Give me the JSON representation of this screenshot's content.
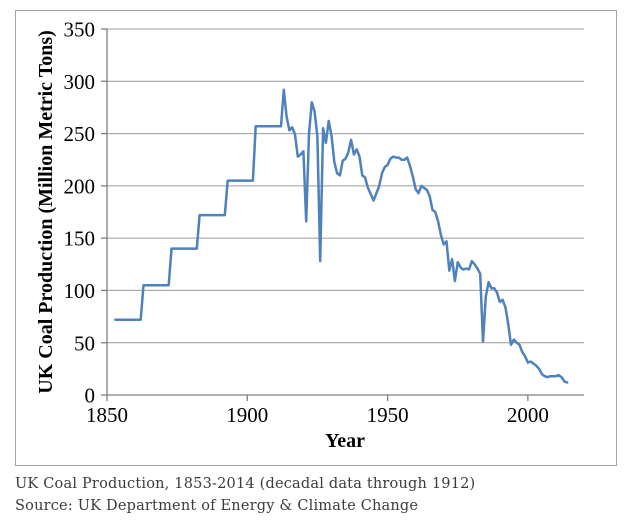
{
  "chart": {
    "y_axis_title": "UK Coal Production (Million Metric Tons)",
    "x_axis_title": "Year",
    "y_ticks": [
      0,
      50,
      100,
      150,
      200,
      250,
      300,
      350
    ],
    "x_ticks": [
      1850,
      1900,
      1950,
      2000
    ],
    "colors": {
      "line": "#4f81bd",
      "gridline": "#9c9c9c",
      "axis": "#7f7f7f",
      "frame_border": "#a3a3a3",
      "tick_text": "#000000",
      "caption_text": "#3c3c3c"
    }
  },
  "caption": {
    "line1": "UK Coal Production, 1853-2014 (decadal data through 1912)",
    "line2": "Source: UK Department of Energy & Climate Change"
  },
  "chart_data": {
    "type": "line",
    "title": "",
    "xlabel": "Year",
    "ylabel": "UK Coal Production (Million Metric Tons)",
    "xlim": [
      1850,
      2020
    ],
    "ylim": [
      0,
      350
    ],
    "grid": true,
    "legend": false,
    "series_name": "UK coal production (million metric tons)",
    "decadal_steps": [
      {
        "start": 1853,
        "end": 1862,
        "value": 72
      },
      {
        "start": 1863,
        "end": 1872,
        "value": 105
      },
      {
        "start": 1873,
        "end": 1882,
        "value": 140
      },
      {
        "start": 1883,
        "end": 1892,
        "value": 172
      },
      {
        "start": 1893,
        "end": 1902,
        "value": 205
      },
      {
        "start": 1903,
        "end": 1912,
        "value": 257
      }
    ],
    "annual": {
      "start_year": 1913,
      "values": [
        292,
        266,
        253,
        256,
        249,
        228,
        230,
        233,
        166,
        250,
        280,
        271,
        247,
        128,
        255,
        241,
        262,
        248,
        223,
        212,
        210,
        224,
        226,
        232,
        244,
        230,
        235,
        228,
        210,
        208,
        198,
        192,
        186,
        193,
        200,
        212,
        218,
        220,
        226,
        228,
        227,
        227,
        225,
        225,
        227,
        219,
        209,
        197,
        193,
        200,
        198,
        196,
        190,
        177,
        175,
        166,
        153,
        144,
        147,
        119,
        130,
        109,
        127,
        122,
        120,
        121,
        120,
        128,
        125,
        121,
        116,
        51,
        94,
        108,
        102,
        102,
        98,
        89,
        91,
        84,
        68,
        48,
        53,
        50,
        48,
        41,
        37,
        31,
        32,
        30,
        28,
        25,
        20,
        18,
        17,
        18,
        18,
        18,
        19,
        17,
        13,
        12
      ]
    }
  }
}
